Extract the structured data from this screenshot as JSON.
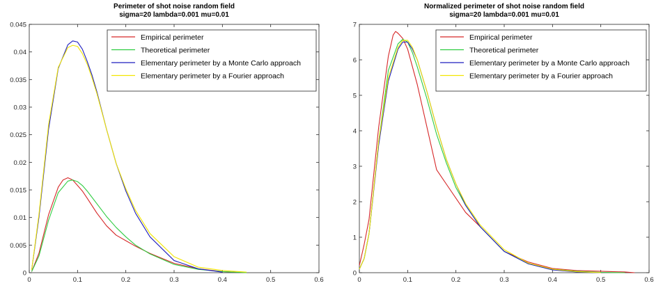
{
  "chart_data": [
    {
      "type": "line",
      "title": "Perimeter of shot noise random field",
      "subtitle": "sigma=20  lambda=0.001  mu=0.01",
      "xlabel": "",
      "ylabel": "",
      "xlim": [
        0,
        0.6
      ],
      "ylim": [
        0,
        0.045
      ],
      "xticks": [
        "0",
        "0.1",
        "0.2",
        "0.3",
        "0.4",
        "0.5",
        "0.6"
      ],
      "yticks": [
        "0",
        "0.005",
        "0.01",
        "0.015",
        "0.02",
        "0.025",
        "0.03",
        "0.035",
        "0.04",
        "0.045"
      ],
      "legend_position": "top-right",
      "grid": false,
      "series": [
        {
          "name": "Empirical perimeter",
          "color": "#d62728",
          "x": [
            0.005,
            0.02,
            0.04,
            0.06,
            0.07,
            0.08,
            0.09,
            0.1,
            0.11,
            0.12,
            0.14,
            0.16,
            0.18,
            0.2,
            0.22,
            0.25,
            0.3,
            0.35,
            0.4,
            0.45
          ],
          "y": [
            0.0002,
            0.0035,
            0.0105,
            0.0155,
            0.0168,
            0.0172,
            0.0168,
            0.0158,
            0.0148,
            0.0135,
            0.0108,
            0.0085,
            0.0068,
            0.0058,
            0.0048,
            0.0035,
            0.0017,
            0.0007,
            0.0002,
            0.0
          ]
        },
        {
          "name": "Theoretical perimeter",
          "color": "#2ecc40",
          "x": [
            0.005,
            0.02,
            0.04,
            0.06,
            0.08,
            0.09,
            0.1,
            0.11,
            0.12,
            0.14,
            0.16,
            0.18,
            0.2,
            0.22,
            0.25,
            0.3,
            0.35,
            0.4,
            0.45
          ],
          "y": [
            0.0002,
            0.003,
            0.0095,
            0.0145,
            0.0166,
            0.0168,
            0.0165,
            0.0158,
            0.0148,
            0.0125,
            0.0102,
            0.0082,
            0.0065,
            0.005,
            0.0034,
            0.0015,
            0.0006,
            0.0002,
            0.0
          ]
        },
        {
          "name": "Elementary perimeter by a Monte Carlo approach",
          "color": "#1f1fbf",
          "x": [
            0.005,
            0.02,
            0.04,
            0.06,
            0.08,
            0.09,
            0.1,
            0.11,
            0.12,
            0.13,
            0.14,
            0.16,
            0.18,
            0.2,
            0.22,
            0.25,
            0.3,
            0.35,
            0.4
          ],
          "y": [
            0.0005,
            0.01,
            0.026,
            0.037,
            0.0413,
            0.042,
            0.0418,
            0.0405,
            0.0383,
            0.0358,
            0.0328,
            0.026,
            0.0198,
            0.0148,
            0.0108,
            0.0065,
            0.0022,
            0.0007,
            0.0001
          ]
        },
        {
          "name": "Elementary perimeter by a Fourier approach",
          "color": "#f2e600",
          "x": [
            0.005,
            0.02,
            0.04,
            0.06,
            0.08,
            0.09,
            0.1,
            0.11,
            0.12,
            0.13,
            0.14,
            0.16,
            0.18,
            0.2,
            0.22,
            0.25,
            0.3,
            0.35,
            0.4,
            0.45
          ],
          "y": [
            0.0005,
            0.0105,
            0.0268,
            0.0372,
            0.0408,
            0.0412,
            0.041,
            0.0397,
            0.0378,
            0.0353,
            0.0325,
            0.026,
            0.0198,
            0.0152,
            0.0113,
            0.0071,
            0.0029,
            0.001,
            0.0004,
            0.0001
          ]
        }
      ]
    },
    {
      "type": "line",
      "title": "Normalized perimeter of shot noise random field",
      "subtitle": "sigma=20  lambda=0.001  mu=0.01",
      "xlabel": "",
      "ylabel": "",
      "xlim": [
        0,
        0.6
      ],
      "ylim": [
        0,
        7
      ],
      "xticks": [
        "0",
        "0.1",
        "0.2",
        "0.3",
        "0.4",
        "0.5",
        "0.6"
      ],
      "yticks": [
        "0",
        "1",
        "2",
        "3",
        "4",
        "5",
        "6",
        "7"
      ],
      "legend_position": "top-right",
      "grid": false,
      "series": [
        {
          "name": "Empirical perimeter",
          "color": "#d62728",
          "x": [
            0.0,
            0.01,
            0.02,
            0.04,
            0.06,
            0.07,
            0.075,
            0.08,
            0.09,
            0.1,
            0.11,
            0.12,
            0.14,
            0.16,
            0.18,
            0.2,
            0.22,
            0.25,
            0.3,
            0.35,
            0.4,
            0.45,
            0.5,
            0.55,
            0.57
          ],
          "y": [
            0.2,
            0.8,
            1.5,
            4.1,
            6.1,
            6.7,
            6.8,
            6.75,
            6.6,
            6.3,
            5.8,
            5.3,
            4.1,
            2.9,
            2.5,
            2.1,
            1.7,
            1.3,
            0.6,
            0.3,
            0.12,
            0.06,
            0.04,
            0.02,
            0.0
          ]
        },
        {
          "name": "Theoretical perimeter",
          "color": "#2ecc40",
          "x": [
            0.0,
            0.01,
            0.02,
            0.04,
            0.06,
            0.08,
            0.09,
            0.1,
            0.11,
            0.12,
            0.14,
            0.16,
            0.18,
            0.2,
            0.22,
            0.25,
            0.3,
            0.35,
            0.4,
            0.45,
            0.5,
            0.55
          ],
          "y": [
            0.1,
            0.4,
            1.1,
            3.7,
            5.7,
            6.45,
            6.58,
            6.5,
            6.2,
            5.8,
            4.9,
            3.9,
            3.1,
            2.4,
            1.9,
            1.3,
            0.6,
            0.25,
            0.1,
            0.04,
            0.01,
            0.0
          ]
        },
        {
          "name": "Elementary perimeter by a Monte Carlo approach",
          "color": "#1f1fbf",
          "x": [
            0.0,
            0.01,
            0.02,
            0.04,
            0.06,
            0.08,
            0.09,
            0.1,
            0.11,
            0.12,
            0.14,
            0.16,
            0.18,
            0.2,
            0.22,
            0.25,
            0.3,
            0.35,
            0.4,
            0.45,
            0.5
          ],
          "y": [
            0.1,
            0.4,
            1.1,
            3.6,
            5.4,
            6.3,
            6.5,
            6.5,
            6.3,
            6.0,
            5.1,
            4.1,
            3.2,
            2.5,
            1.9,
            1.3,
            0.6,
            0.25,
            0.08,
            0.02,
            0.0
          ]
        },
        {
          "name": "Elementary perimeter by a Fourier approach",
          "color": "#f2e600",
          "x": [
            0.0,
            0.01,
            0.02,
            0.04,
            0.06,
            0.08,
            0.09,
            0.1,
            0.11,
            0.12,
            0.14,
            0.16,
            0.18,
            0.2,
            0.22,
            0.25,
            0.3,
            0.35,
            0.4,
            0.45,
            0.5
          ],
          "y": [
            0.1,
            0.4,
            1.1,
            3.7,
            5.5,
            6.35,
            6.55,
            6.55,
            6.35,
            6.0,
            5.1,
            4.1,
            3.2,
            2.5,
            1.95,
            1.35,
            0.65,
            0.27,
            0.1,
            0.03,
            0.0
          ]
        }
      ]
    }
  ]
}
